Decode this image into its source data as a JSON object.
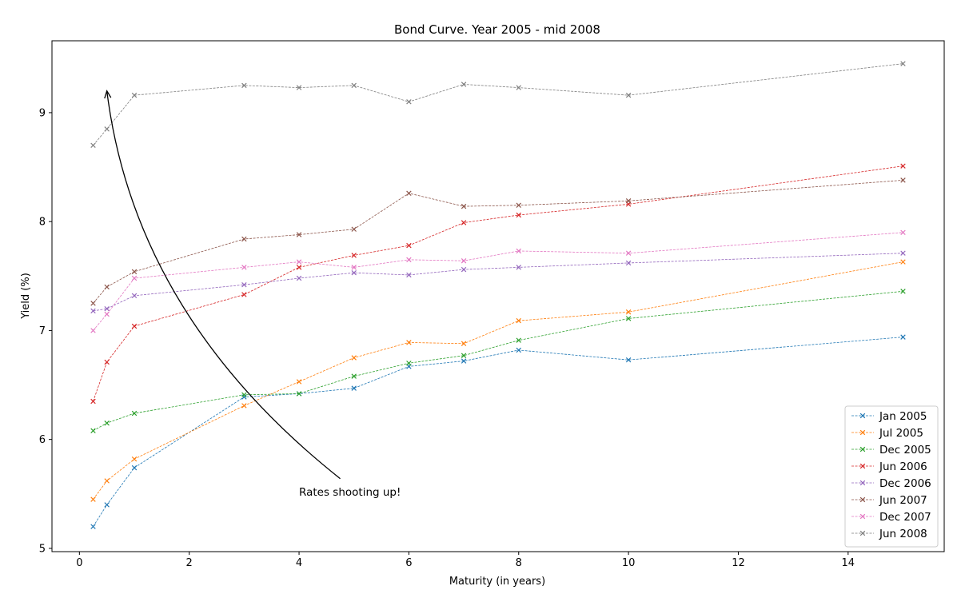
{
  "chart_data": {
    "type": "line",
    "title": "Bond Curve. Year 2005 - mid 2008",
    "xlabel": "Maturity (in years)",
    "ylabel": "Yield (%)",
    "xlim": [
      -0.5,
      15.75
    ],
    "ylim": [
      4.97,
      9.66
    ],
    "xticks": [
      0,
      2,
      4,
      6,
      8,
      10,
      12,
      14
    ],
    "yticks": [
      5,
      6,
      7,
      8,
      9
    ],
    "grid": false,
    "legend_position": "lower-right",
    "marker": "x",
    "line_style": "dashed",
    "x": [
      0.25,
      0.5,
      1,
      3,
      4,
      5,
      6,
      7,
      8,
      10,
      15
    ],
    "series": [
      {
        "name": "Jan 2005",
        "color": "#1f77b4",
        "values": [
          5.2,
          5.4,
          5.74,
          6.39,
          6.42,
          6.47,
          6.67,
          6.72,
          6.82,
          6.73,
          6.94
        ]
      },
      {
        "name": "Jul 2005",
        "color": "#ff7f0e",
        "values": [
          5.45,
          5.62,
          5.82,
          6.31,
          6.53,
          6.75,
          6.89,
          6.88,
          7.09,
          7.17,
          7.63
        ]
      },
      {
        "name": "Dec 2005",
        "color": "#2ca02c",
        "values": [
          6.08,
          6.15,
          6.24,
          6.41,
          6.42,
          6.58,
          6.7,
          6.77,
          6.91,
          7.11,
          7.36
        ]
      },
      {
        "name": "Jun 2006",
        "color": "#d62728",
        "values": [
          6.35,
          6.71,
          7.04,
          7.33,
          7.58,
          7.69,
          7.78,
          7.99,
          8.06,
          8.16,
          8.51
        ]
      },
      {
        "name": "Dec 2006",
        "color": "#9467bd",
        "values": [
          7.18,
          7.2,
          7.32,
          7.42,
          7.48,
          7.53,
          7.51,
          7.56,
          7.58,
          7.62,
          7.71
        ]
      },
      {
        "name": "Jun 2007",
        "color": "#8c564b",
        "values": [
          7.25,
          7.4,
          7.54,
          7.84,
          7.88,
          7.93,
          8.26,
          8.14,
          8.15,
          8.19,
          8.38
        ]
      },
      {
        "name": "Dec 2007",
        "color": "#e377c2",
        "values": [
          7.0,
          7.15,
          7.48,
          7.58,
          7.63,
          7.58,
          7.65,
          7.64,
          7.73,
          7.71,
          7.9
        ]
      },
      {
        "name": "Jun 2008",
        "color": "#7f7f7f",
        "values": [
          8.7,
          8.85,
          9.16,
          9.25,
          9.23,
          9.25,
          9.1,
          9.26,
          9.23,
          9.16,
          9.45
        ]
      }
    ],
    "annotations": [
      {
        "text": "Rates shooting up!",
        "text_at": [
          4.0,
          5.52
        ],
        "arrow_from": [
          4.75,
          5.64
        ],
        "arrow_to": [
          0.5,
          9.2
        ]
      }
    ]
  }
}
